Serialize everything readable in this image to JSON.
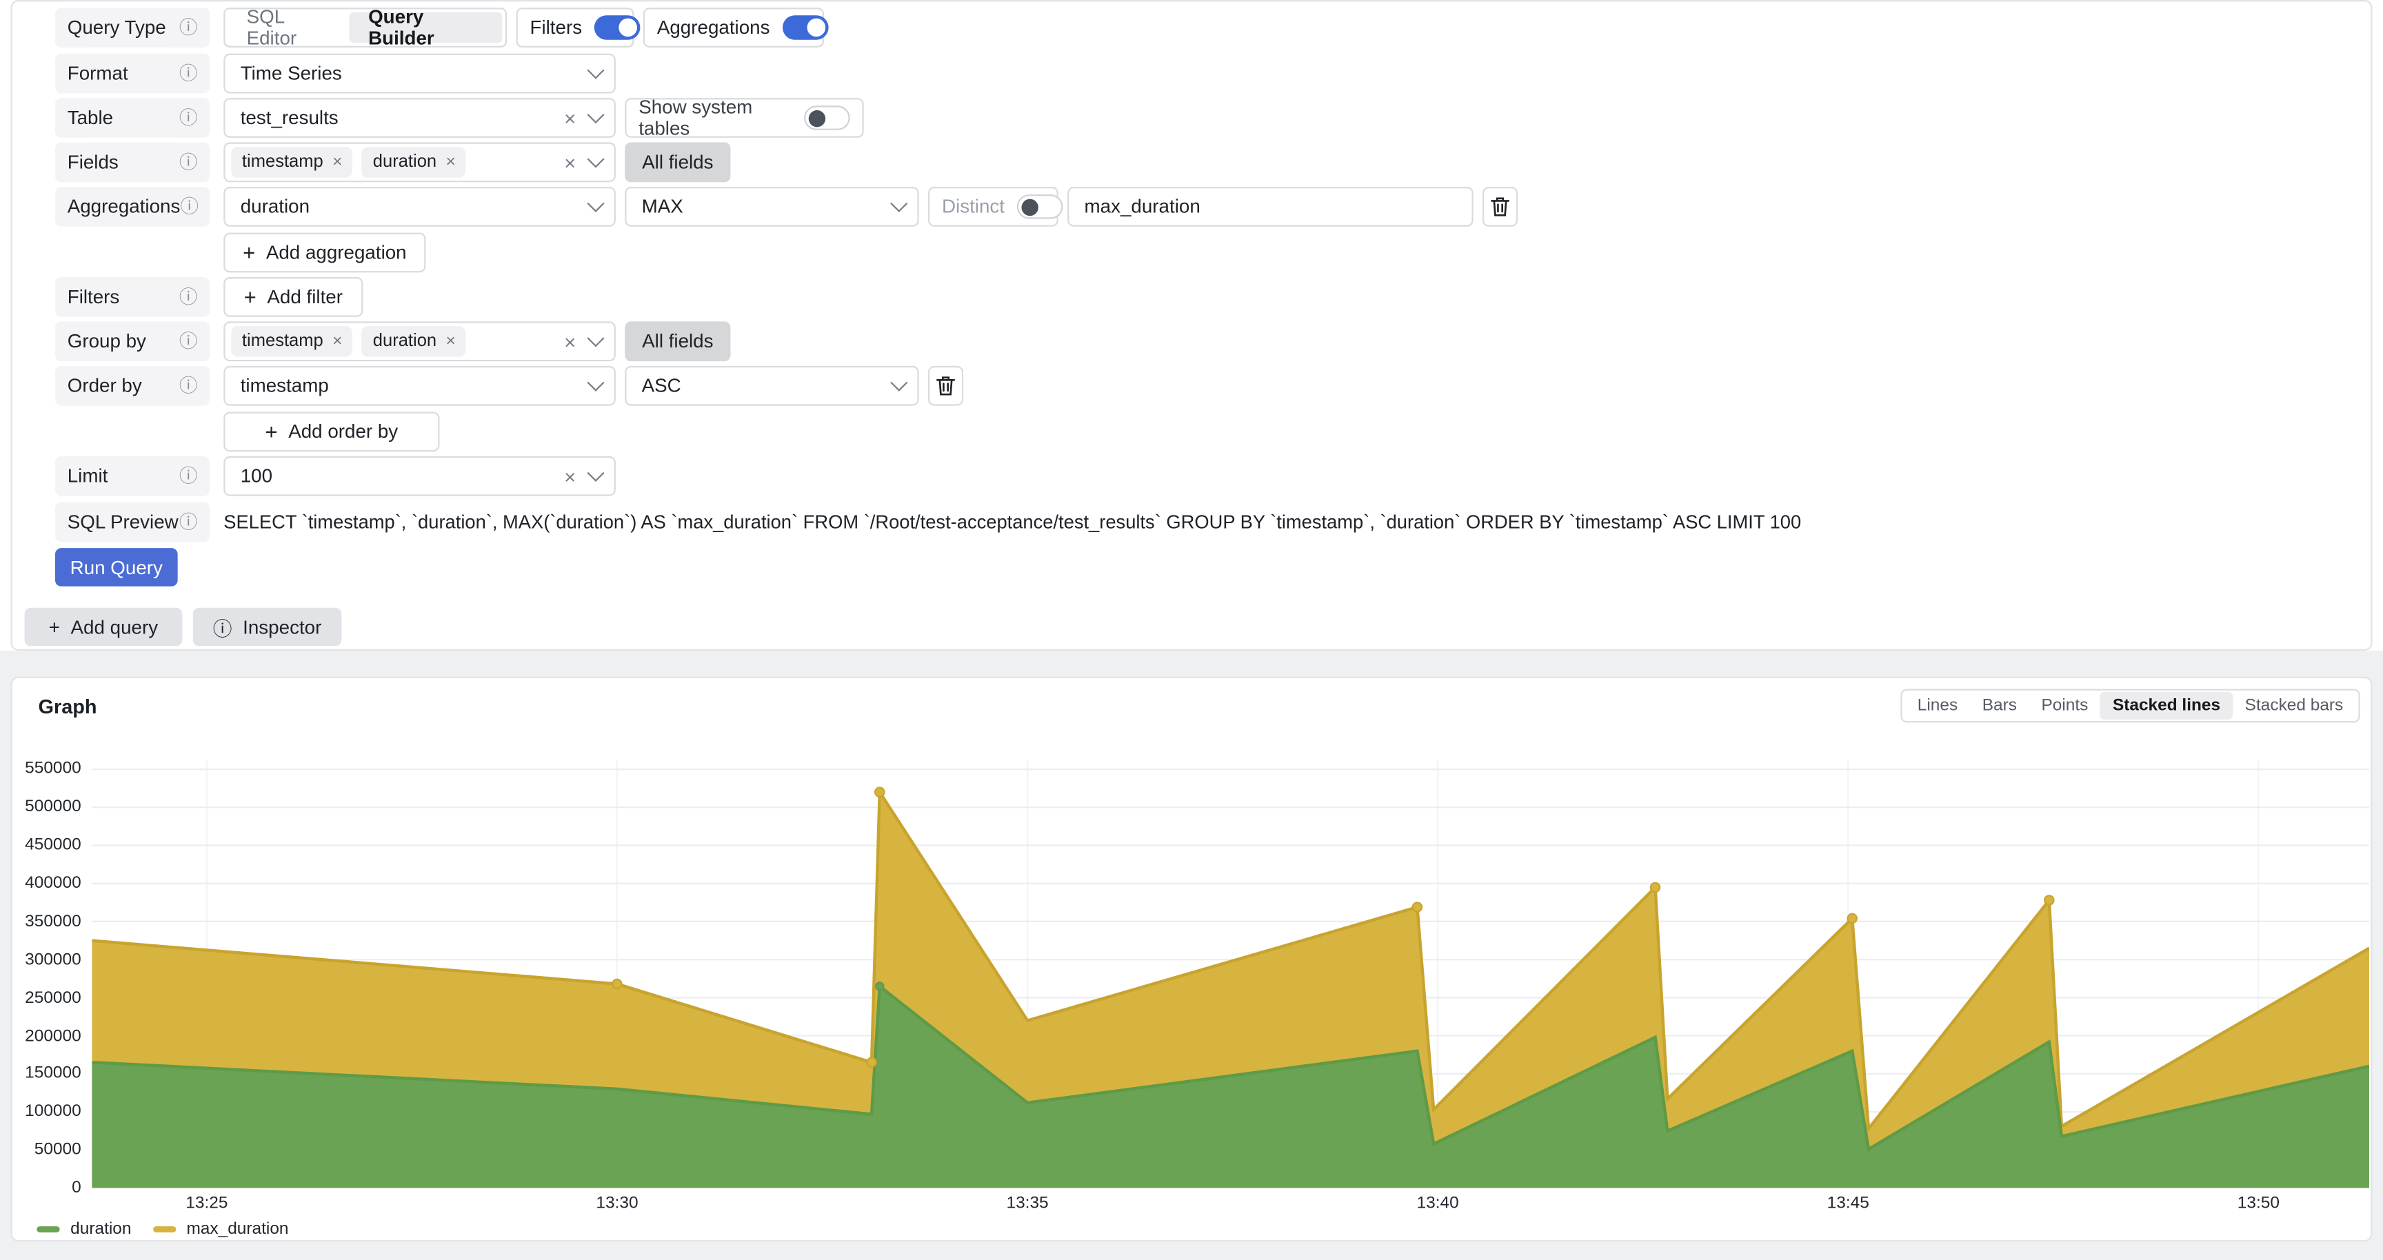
{
  "icons": {
    "plus": "+",
    "info": "ⓘ",
    "close": "×"
  },
  "query_editor": {
    "query_type": {
      "label": "Query Type",
      "options": [
        "SQL Editor",
        "Query Builder"
      ],
      "selected": "Query Builder",
      "filters_toggle": {
        "label": "Filters",
        "on": true
      },
      "aggregations_toggle": {
        "label": "Aggregations",
        "on": true
      }
    },
    "format": {
      "label": "Format",
      "value": "Time Series"
    },
    "table": {
      "label": "Table",
      "value": "test_results",
      "show_system_tables": {
        "label": "Show system tables",
        "on": false
      }
    },
    "fields": {
      "label": "Fields",
      "tags": [
        "timestamp",
        "duration"
      ],
      "all_fields": "All fields"
    },
    "aggregations": {
      "label": "Aggregations",
      "column": "duration",
      "function": "MAX",
      "distinct": {
        "label": "Distinct",
        "on": false
      },
      "alias": "max_duration",
      "add_label": "Add aggregation"
    },
    "filters": {
      "label": "Filters",
      "add_label": "Add filter"
    },
    "group_by": {
      "label": "Group by",
      "tags": [
        "timestamp",
        "duration"
      ],
      "all_fields": "All fields"
    },
    "order_by": {
      "label": "Order by",
      "column": "timestamp",
      "direction": "ASC",
      "add_label": "Add order by"
    },
    "limit": {
      "label": "Limit",
      "value": "100"
    },
    "sql_preview": {
      "label": "SQL Preview",
      "sql": "SELECT `timestamp`, `duration`, MAX(`duration`) AS `max_duration` FROM `/Root/test-acceptance/test_results` GROUP BY `timestamp`, `duration` ORDER BY `timestamp` ASC LIMIT 100"
    },
    "run_query": "Run Query"
  },
  "footer": {
    "add_query": "Add query",
    "inspector": "Inspector"
  },
  "graph": {
    "title": "Graph",
    "modes": [
      "Lines",
      "Bars",
      "Points",
      "Stacked lines",
      "Stacked bars"
    ],
    "selected_mode": "Stacked lines"
  },
  "chart_data": {
    "type": "area",
    "stacked": true,
    "title": "Graph",
    "xlabel": "",
    "ylabel": "",
    "legend_position": "bottom-left",
    "grid": true,
    "x_ticks": [
      {
        "label": "13:25",
        "t": 25
      },
      {
        "label": "13:30",
        "t": 30
      },
      {
        "label": "13:35",
        "t": 35
      },
      {
        "label": "13:40",
        "t": 40
      },
      {
        "label": "13:45",
        "t": 45
      },
      {
        "label": "13:50",
        "t": 50
      }
    ],
    "x_range": [
      23.6,
      51.35
    ],
    "y_ticks": [
      0,
      50000,
      100000,
      150000,
      200000,
      250000,
      300000,
      350000,
      400000,
      450000,
      500000,
      550000
    ],
    "y_range": [
      0,
      563000
    ],
    "series": [
      {
        "name": "duration",
        "color": "#6aa353",
        "stroke": "#5f9a47"
      },
      {
        "name": "max_duration",
        "color": "#d7b440",
        "stroke": "#c8a42f"
      }
    ],
    "points": [
      {
        "t": 23.6,
        "duration": 165000,
        "max_duration": 160000
      },
      {
        "t": 30.0,
        "duration": 130000,
        "max_duration": 138000,
        "marker": true
      },
      {
        "t": 33.1,
        "duration": 97000,
        "max_duration": 68000,
        "marker": true
      },
      {
        "t": 33.2,
        "duration": 265000,
        "max_duration": 255000,
        "marker": true,
        "marker_duration": true
      },
      {
        "t": 35.0,
        "duration": 112000,
        "max_duration": 108000
      },
      {
        "t": 39.75,
        "duration": 180000,
        "max_duration": 189000,
        "marker": true
      },
      {
        "t": 39.95,
        "duration": 58000,
        "max_duration": 45000
      },
      {
        "t": 42.65,
        "duration": 198000,
        "max_duration": 197000,
        "marker": true
      },
      {
        "t": 42.8,
        "duration": 75000,
        "max_duration": 42000
      },
      {
        "t": 45.05,
        "duration": 180000,
        "max_duration": 174000,
        "marker": true
      },
      {
        "t": 45.25,
        "duration": 51000,
        "max_duration": 27000
      },
      {
        "t": 47.45,
        "duration": 192000,
        "max_duration": 186000,
        "marker": true
      },
      {
        "t": 47.6,
        "duration": 68000,
        "max_duration": 13000
      },
      {
        "t": 51.35,
        "duration": 160000,
        "max_duration": 155000
      }
    ]
  }
}
